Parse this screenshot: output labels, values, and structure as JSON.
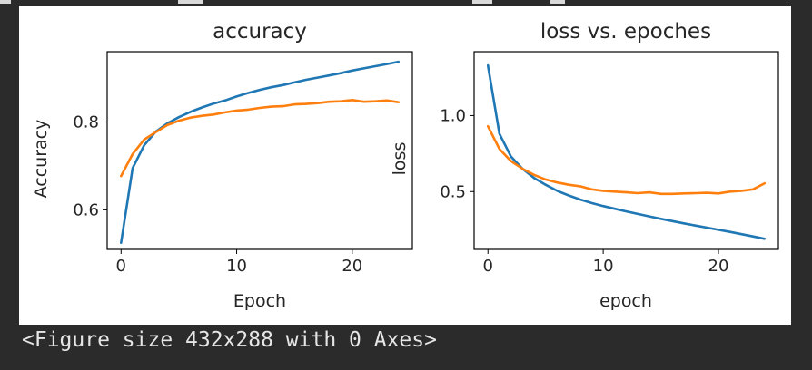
{
  "caption": "<Figure size 432x288 with 0 Axes>",
  "colors": {
    "background": "#2b2b2b",
    "series_blue": "#1f77b4",
    "series_orange": "#ff7f0e"
  },
  "chart_data": [
    {
      "type": "line",
      "title": "accuracy",
      "xlabel": "Epoch",
      "ylabel": "Accuracy",
      "xlim": [
        -1.2,
        25.2
      ],
      "ylim": [
        0.51,
        0.96
      ],
      "xticks": [
        0,
        10,
        20
      ],
      "yticks": [
        0.6,
        0.8
      ],
      "ytick_labels": [
        "0.6",
        "0.8"
      ],
      "grid": false,
      "x": [
        0,
        1,
        2,
        3,
        4,
        5,
        6,
        7,
        8,
        9,
        10,
        11,
        12,
        13,
        14,
        15,
        16,
        17,
        18,
        19,
        20,
        21,
        22,
        23,
        24
      ],
      "series": [
        {
          "color": "#1f77b4",
          "values": [
            0.525,
            0.695,
            0.747,
            0.778,
            0.797,
            0.811,
            0.823,
            0.833,
            0.842,
            0.849,
            0.858,
            0.866,
            0.873,
            0.879,
            0.884,
            0.89,
            0.896,
            0.901,
            0.906,
            0.911,
            0.917,
            0.922,
            0.927,
            0.932,
            0.937
          ]
        },
        {
          "color": "#ff7f0e",
          "values": [
            0.677,
            0.727,
            0.76,
            0.777,
            0.793,
            0.803,
            0.81,
            0.814,
            0.817,
            0.822,
            0.826,
            0.828,
            0.832,
            0.835,
            0.836,
            0.84,
            0.841,
            0.843,
            0.846,
            0.847,
            0.85,
            0.846,
            0.847,
            0.849,
            0.845
          ]
        }
      ]
    },
    {
      "type": "line",
      "title": "loss vs. epoches",
      "xlabel": "epoch",
      "ylabel": "loss",
      "xlim": [
        -1.2,
        25.2
      ],
      "ylim": [
        0.12,
        1.42
      ],
      "xticks": [
        0,
        10,
        20
      ],
      "yticks": [
        0.5,
        1.0
      ],
      "ytick_labels": [
        "0.5",
        "1.0"
      ],
      "grid": false,
      "x": [
        0,
        1,
        2,
        3,
        4,
        5,
        6,
        7,
        8,
        9,
        10,
        11,
        12,
        13,
        14,
        15,
        16,
        17,
        18,
        19,
        20,
        21,
        22,
        23,
        24
      ],
      "series": [
        {
          "color": "#1f77b4",
          "values": [
            1.33,
            0.88,
            0.73,
            0.65,
            0.59,
            0.545,
            0.505,
            0.475,
            0.448,
            0.425,
            0.405,
            0.387,
            0.37,
            0.353,
            0.337,
            0.321,
            0.306,
            0.291,
            0.277,
            0.263,
            0.249,
            0.235,
            0.22,
            0.205,
            0.19
          ]
        },
        {
          "color": "#ff7f0e",
          "values": [
            0.93,
            0.78,
            0.7,
            0.65,
            0.61,
            0.58,
            0.56,
            0.545,
            0.535,
            0.515,
            0.505,
            0.5,
            0.495,
            0.49,
            0.495,
            0.485,
            0.485,
            0.488,
            0.49,
            0.492,
            0.488,
            0.5,
            0.505,
            0.515,
            0.555
          ]
        }
      ]
    }
  ]
}
